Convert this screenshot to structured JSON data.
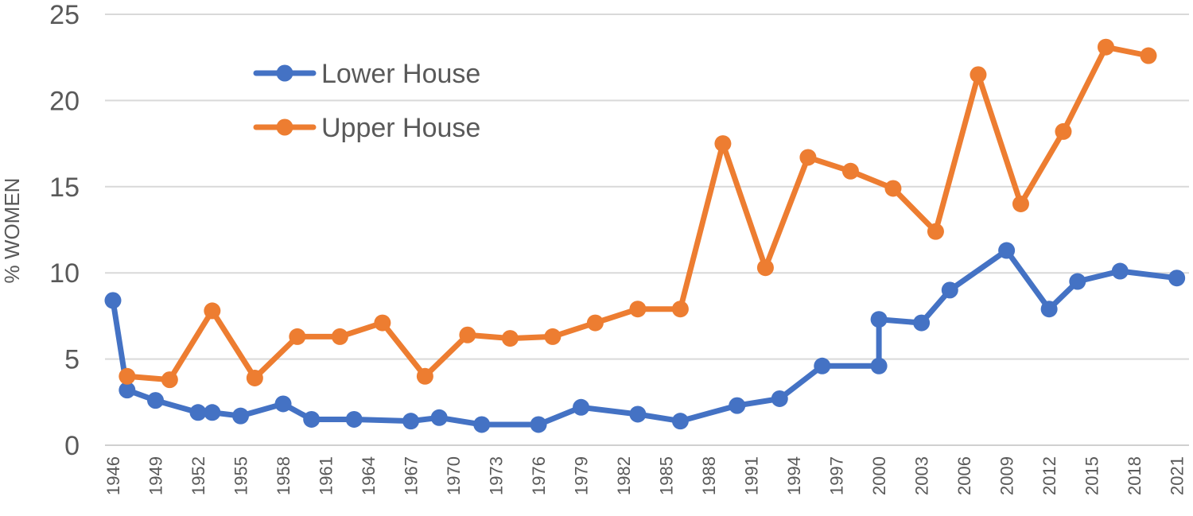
{
  "chart_data": {
    "type": "line",
    "title": "",
    "xlabel": "",
    "ylabel": "% WOMEN",
    "ylim": [
      0,
      25
    ],
    "yticks": [
      0,
      5,
      10,
      15,
      20,
      25
    ],
    "xticks": [
      "1946",
      "1949",
      "1952",
      "1955",
      "1958",
      "1961",
      "1964",
      "1967",
      "1970",
      "1973",
      "1976",
      "1979",
      "1982",
      "1985",
      "1988",
      "1991",
      "1994",
      "1997",
      "2000",
      "2003",
      "2006",
      "2009",
      "2012",
      "2015",
      "2018",
      "2021"
    ],
    "xlim": [
      1946,
      2021.3
    ],
    "grid": true,
    "legend_position": "top-left",
    "series": [
      {
        "name": "Lower House",
        "color": "#4472c4",
        "points": [
          [
            1946.0,
            8.4
          ],
          [
            1947.0,
            3.2
          ],
          [
            1949.0,
            2.6
          ],
          [
            1952.0,
            1.9
          ],
          [
            1953.0,
            1.9
          ],
          [
            1955.0,
            1.7
          ],
          [
            1958.0,
            2.4
          ],
          [
            1960.0,
            1.5
          ],
          [
            1963.0,
            1.5
          ],
          [
            1967.0,
            1.4
          ],
          [
            1969.0,
            1.6
          ],
          [
            1972.0,
            1.2
          ],
          [
            1976.0,
            1.2
          ],
          [
            1979.0,
            2.2
          ],
          [
            1983.0,
            1.8
          ],
          [
            1986.0,
            1.4
          ],
          [
            1990.0,
            2.3
          ],
          [
            1993.0,
            2.7
          ],
          [
            1996.0,
            4.6
          ],
          [
            2000.0,
            4.6
          ],
          [
            2000.0,
            7.3
          ],
          [
            2003.0,
            7.1
          ],
          [
            2005.0,
            9.0
          ],
          [
            2009.0,
            11.3
          ],
          [
            2012.0,
            7.9
          ],
          [
            2014.0,
            9.5
          ],
          [
            2017.0,
            10.1
          ],
          [
            2021.0,
            9.7
          ]
        ]
      },
      {
        "name": "Upper House",
        "color": "#ed7d31",
        "points": [
          [
            1947.0,
            4.0
          ],
          [
            1950.0,
            3.8
          ],
          [
            1953.0,
            7.8
          ],
          [
            1956.0,
            3.9
          ],
          [
            1959.0,
            6.3
          ],
          [
            1962.0,
            6.3
          ],
          [
            1965.0,
            7.1
          ],
          [
            1968.0,
            4.0
          ],
          [
            1971.0,
            6.4
          ],
          [
            1974.0,
            6.2
          ],
          [
            1977.0,
            6.3
          ],
          [
            1980.0,
            7.1
          ],
          [
            1983.0,
            7.9
          ],
          [
            1986.0,
            7.9
          ],
          [
            1989.0,
            17.5
          ],
          [
            1992.0,
            10.3
          ],
          [
            1995.0,
            16.7
          ],
          [
            1998.0,
            15.9
          ],
          [
            2001.0,
            14.9
          ],
          [
            2004.0,
            12.4
          ],
          [
            2007.0,
            21.5
          ],
          [
            2010.0,
            14.0
          ],
          [
            2013.0,
            18.2
          ],
          [
            2016.0,
            23.1
          ],
          [
            2019.0,
            22.6
          ]
        ]
      }
    ]
  }
}
